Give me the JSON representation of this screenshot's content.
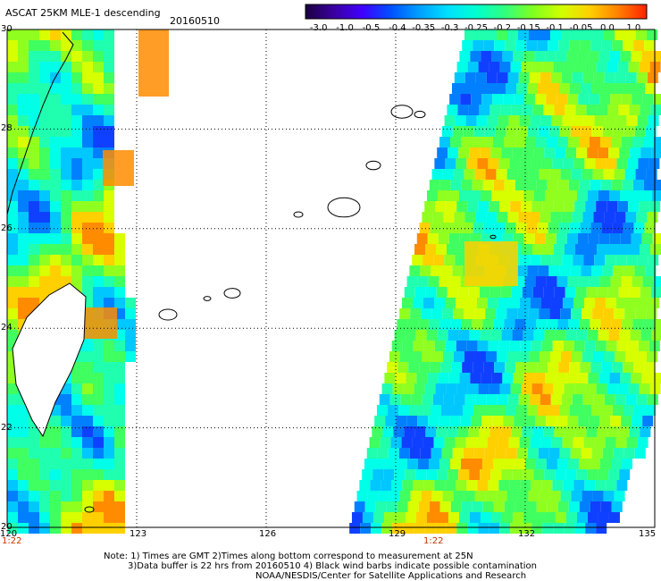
{
  "header": {
    "title": "ASCAT 25KM MLE-1 descending",
    "date": "20160510"
  },
  "colorbar": {
    "tick_labels": [
      "-3.0",
      "-1.0",
      "-0.5",
      "-0.4",
      "-0.35",
      "-0.3",
      "-0.25",
      "-0.2",
      "-0.15",
      "-0.1",
      "-0.05",
      "0.0",
      "1.0"
    ],
    "colors": [
      "#1a0040",
      "#3a00a0",
      "#4000ff",
      "#0050ff",
      "#00a0ff",
      "#00e0ff",
      "#00ffd0",
      "#30ff80",
      "#80ff20",
      "#d0ff00",
      "#ffd000",
      "#ff8000",
      "#ff2000"
    ]
  },
  "map": {
    "lat_labels": [
      "30",
      "28",
      "26",
      "24",
      "22",
      "20"
    ],
    "lon_labels": [
      "120",
      "123",
      "126",
      "129",
      "132",
      "135"
    ],
    "lat_range": [
      20,
      30
    ],
    "lon_range": [
      120,
      135
    ],
    "grid": true,
    "swath_time_labels": [
      "1:22",
      "1:22"
    ]
  },
  "notes": {
    "line1": "Note: 1) Times are GMT 2)Times along bottom correspond to measurement at 25N",
    "line2": "3)Data buffer is 22 hrs from 20160510 4) Black wind barbs indicate possible contamination",
    "line3": "NOAA/NESDIS/Center for Satellite Applications and Research"
  }
}
